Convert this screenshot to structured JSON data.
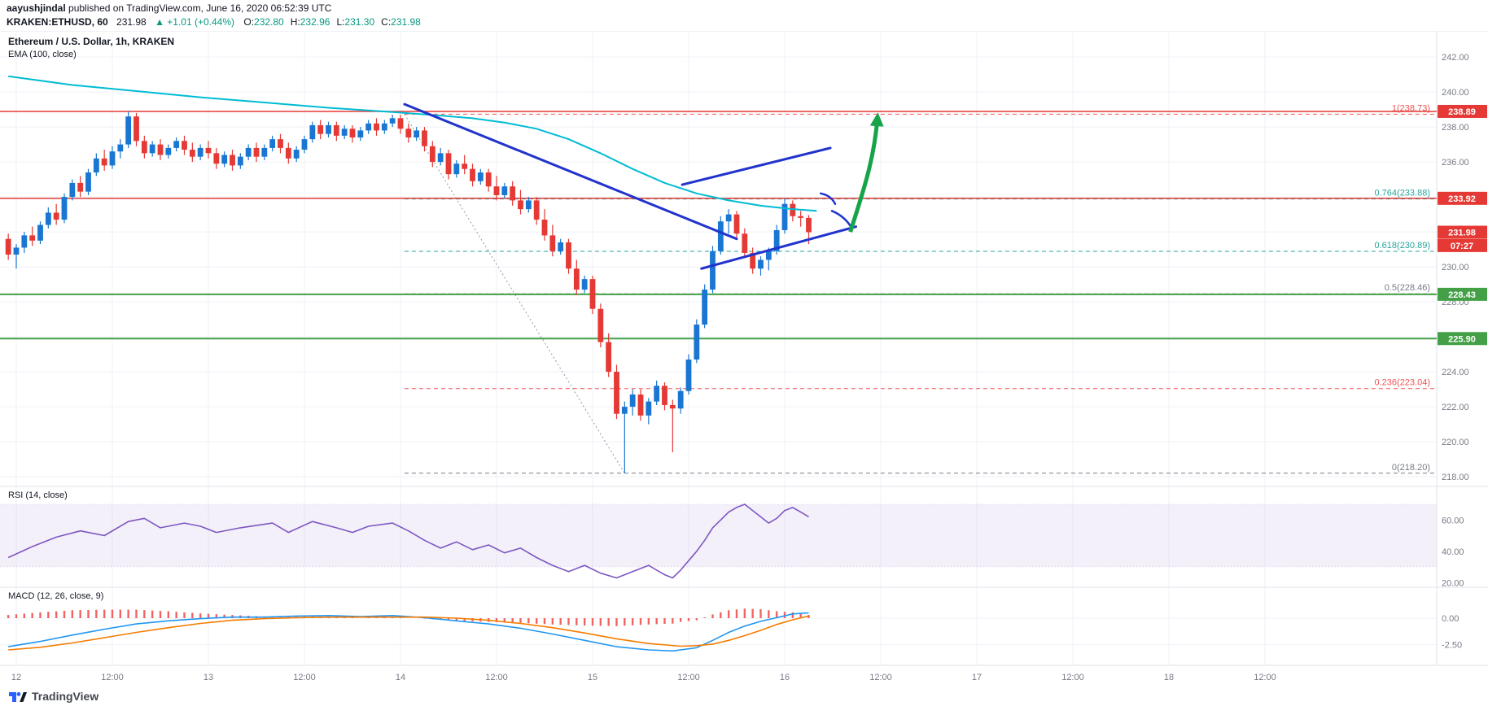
{
  "header": {
    "author": "aayushjindal",
    "published": " published on TradingView.com, June 16, 2020 06:52:39 UTC",
    "symbol": "KRAKEN:ETHUSD, 60",
    "last_price": "231.98",
    "change": "▲ +1.01 (+0.44%)",
    "ohlc": [
      {
        "label": "O:",
        "value": "232.80"
      },
      {
        "label": "H:",
        "value": "232.96"
      },
      {
        "label": "L:",
        "value": "231.30"
      },
      {
        "label": "C:",
        "value": "231.98"
      }
    ]
  },
  "pane_labels": {
    "main_title": "Ethereum / U.S. Dollar, 1h, KRAKEN",
    "ema_label": "EMA (100, close)",
    "rsi_label": "RSI (14, close)",
    "macd_label": "MACD (12, 26, close, 9)"
  },
  "footer": {
    "brand": "TradingView"
  },
  "colors": {
    "up": "#1976d2",
    "down": "#e53935",
    "ema": "#00bcd4",
    "trend": "#2133cc",
    "arrow": "#16a34a",
    "rsi": "#7e57c2",
    "macd_line": "#2196f3",
    "macd_signal": "#f57c00",
    "macd_hist": "#ef5350",
    "green_line": "#43a047",
    "red_line": "#e53935",
    "teal": "#26a69a",
    "gray": "#787b86",
    "grid": "#eef1f8",
    "border": "#e0e3eb",
    "tick_text": "#787b86"
  },
  "chart_data": {
    "type": "candlestick",
    "title": "Ethereum / U.S. Dollar, 1h, KRAKEN",
    "symbol": "ETHUSD",
    "exchange": "KRAKEN",
    "interval": "1h",
    "ylim": [
      217.4,
      243.4
    ],
    "price_axis": [
      {
        "v": 242,
        "label": "242.00"
      },
      {
        "v": 240,
        "label": "240.00"
      },
      {
        "v": 238,
        "label": "238.00"
      },
      {
        "v": 236,
        "label": "236.00"
      },
      {
        "v": 234,
        "label": "234.00"
      },
      {
        "v": 232,
        "label": "232.00"
      },
      {
        "v": 230,
        "label": "230.00"
      },
      {
        "v": 228,
        "label": "228.00"
      },
      {
        "v": 226,
        "label": "226.00"
      },
      {
        "v": 224,
        "label": "224.00"
      },
      {
        "v": 222,
        "label": "222.00"
      },
      {
        "v": 220,
        "label": "220.00"
      },
      {
        "v": 218,
        "label": "218.00"
      }
    ],
    "time_axis": [
      [
        0,
        "12"
      ],
      [
        12,
        "12:00"
      ],
      [
        24,
        "13"
      ],
      [
        36,
        "12:00"
      ],
      [
        48,
        "14"
      ],
      [
        60,
        "12:00"
      ],
      [
        72,
        "15"
      ],
      [
        84,
        "12:00"
      ],
      [
        96,
        "16"
      ],
      [
        108,
        "12:00"
      ],
      [
        120,
        "17"
      ],
      [
        132,
        "12:00"
      ],
      [
        144,
        "18"
      ],
      [
        156,
        "12:00"
      ]
    ],
    "candles": [
      [
        231.6,
        231.9,
        230.4,
        230.7
      ],
      [
        230.7,
        231.3,
        229.9,
        231.1
      ],
      [
        231.1,
        232.0,
        230.8,
        231.8
      ],
      [
        231.8,
        232.3,
        231.2,
        231.5
      ],
      [
        231.5,
        232.6,
        231.3,
        232.4
      ],
      [
        232.4,
        233.4,
        232.2,
        233.1
      ],
      [
        233.1,
        233.6,
        232.4,
        232.7
      ],
      [
        232.7,
        234.2,
        232.5,
        234.0
      ],
      [
        234.0,
        235.0,
        233.8,
        234.8
      ],
      [
        234.8,
        235.2,
        234.0,
        234.3
      ],
      [
        234.3,
        235.6,
        234.1,
        235.4
      ],
      [
        235.4,
        236.5,
        235.2,
        236.2
      ],
      [
        236.2,
        236.7,
        235.5,
        235.8
      ],
      [
        235.8,
        236.9,
        235.6,
        236.6
      ],
      [
        236.6,
        237.3,
        236.2,
        237.0
      ],
      [
        237.0,
        238.9,
        236.8,
        238.6
      ],
      [
        238.6,
        238.8,
        236.9,
        237.2
      ],
      [
        237.2,
        237.5,
        236.2,
        236.5
      ],
      [
        236.5,
        237.2,
        236.3,
        237.0
      ],
      [
        237.0,
        237.3,
        236.1,
        236.4
      ],
      [
        236.4,
        237.0,
        236.2,
        236.8
      ],
      [
        236.8,
        237.4,
        236.6,
        237.2
      ],
      [
        237.2,
        237.5,
        236.4,
        236.7
      ],
      [
        236.7,
        237.1,
        236.0,
        236.3
      ],
      [
        236.3,
        237.0,
        236.1,
        236.8
      ],
      [
        236.8,
        237.2,
        236.2,
        236.5
      ],
      [
        236.5,
        236.8,
        235.6,
        235.9
      ],
      [
        235.9,
        236.6,
        235.7,
        236.4
      ],
      [
        236.4,
        236.7,
        235.5,
        235.8
      ],
      [
        235.8,
        236.5,
        235.6,
        236.3
      ],
      [
        236.3,
        237.0,
        236.1,
        236.8
      ],
      [
        236.8,
        237.1,
        236.0,
        236.3
      ],
      [
        236.3,
        237.0,
        236.1,
        236.8
      ],
      [
        236.8,
        237.5,
        236.6,
        237.3
      ],
      [
        237.3,
        237.6,
        236.5,
        236.8
      ],
      [
        236.8,
        237.1,
        235.9,
        236.2
      ],
      [
        236.2,
        236.9,
        236.0,
        236.7
      ],
      [
        236.7,
        237.5,
        236.5,
        237.3
      ],
      [
        237.3,
        238.3,
        237.1,
        238.1
      ],
      [
        238.1,
        238.4,
        237.3,
        237.6
      ],
      [
        237.6,
        238.3,
        237.4,
        238.1
      ],
      [
        238.1,
        238.3,
        237.2,
        237.5
      ],
      [
        237.5,
        238.1,
        237.3,
        237.9
      ],
      [
        237.9,
        238.1,
        237.1,
        237.4
      ],
      [
        237.4,
        238.0,
        237.2,
        237.8
      ],
      [
        237.8,
        238.4,
        237.6,
        238.2
      ],
      [
        238.2,
        238.5,
        237.5,
        237.8
      ],
      [
        237.8,
        238.4,
        237.6,
        238.2
      ],
      [
        238.2,
        238.7,
        238.0,
        238.5
      ],
      [
        238.5,
        238.7,
        237.6,
        237.9
      ],
      [
        237.9,
        238.2,
        237.1,
        237.4
      ],
      [
        237.4,
        238.0,
        237.2,
        237.8
      ],
      [
        237.8,
        238.0,
        236.6,
        236.9
      ],
      [
        236.9,
        237.2,
        235.7,
        236.0
      ],
      [
        236.0,
        236.8,
        235.8,
        236.5
      ],
      [
        236.5,
        236.7,
        235.0,
        235.3
      ],
      [
        235.3,
        236.1,
        235.1,
        235.9
      ],
      [
        235.9,
        236.4,
        235.3,
        235.6
      ],
      [
        235.6,
        235.9,
        234.6,
        234.9
      ],
      [
        234.9,
        235.6,
        234.7,
        235.4
      ],
      [
        235.4,
        235.6,
        234.3,
        234.6
      ],
      [
        234.6,
        235.2,
        233.8,
        234.1
      ],
      [
        234.1,
        234.8,
        233.9,
        234.6
      ],
      [
        234.6,
        234.9,
        233.5,
        233.8
      ],
      [
        233.8,
        234.4,
        233.0,
        233.3
      ],
      [
        233.3,
        234.0,
        233.1,
        233.8
      ],
      [
        233.8,
        234.0,
        232.4,
        232.7
      ],
      [
        232.7,
        233.3,
        231.5,
        231.8
      ],
      [
        231.8,
        232.4,
        230.6,
        230.9
      ],
      [
        230.9,
        231.6,
        230.7,
        231.4
      ],
      [
        231.4,
        231.6,
        229.6,
        229.9
      ],
      [
        229.9,
        230.4,
        228.4,
        228.7
      ],
      [
        228.7,
        229.5,
        228.5,
        229.3
      ],
      [
        229.3,
        229.5,
        227.3,
        227.6
      ],
      [
        227.6,
        227.9,
        225.4,
        225.7
      ],
      [
        225.7,
        226.2,
        223.7,
        224.0
      ],
      [
        224.0,
        224.4,
        221.3,
        221.6
      ],
      [
        221.6,
        222.3,
        218.2,
        222.0
      ],
      [
        222.0,
        223.0,
        221.5,
        222.7
      ],
      [
        222.7,
        223.0,
        221.2,
        221.5
      ],
      [
        221.5,
        222.5,
        221.0,
        222.3
      ],
      [
        222.3,
        223.5,
        222.1,
        223.2
      ],
      [
        223.2,
        223.4,
        221.8,
        222.1
      ],
      [
        222.1,
        222.4,
        219.4,
        221.9
      ],
      [
        221.9,
        223.1,
        221.6,
        222.9
      ],
      [
        222.9,
        225.0,
        222.7,
        224.7
      ],
      [
        224.7,
        227.0,
        224.5,
        226.7
      ],
      [
        226.7,
        229.0,
        226.5,
        228.7
      ],
      [
        228.7,
        231.2,
        228.5,
        230.9
      ],
      [
        230.9,
        232.9,
        230.7,
        232.6
      ],
      [
        232.6,
        233.3,
        231.9,
        233.0
      ],
      [
        233.0,
        233.2,
        231.6,
        231.9
      ],
      [
        231.9,
        232.2,
        230.5,
        230.8
      ],
      [
        230.8,
        231.1,
        229.6,
        229.9
      ],
      [
        229.9,
        230.6,
        229.5,
        230.4
      ],
      [
        230.4,
        231.1,
        229.8,
        230.9
      ],
      [
        230.9,
        232.4,
        230.7,
        232.1
      ],
      [
        232.1,
        233.9,
        231.9,
        233.6
      ],
      [
        233.6,
        233.8,
        232.6,
        232.9
      ],
      [
        232.9,
        233.2,
        232.3,
        232.8
      ],
      [
        232.8,
        232.96,
        231.3,
        231.98
      ]
    ],
    "ema100": [
      [
        0,
        240.9
      ],
      [
        8,
        240.4
      ],
      [
        16,
        240.05
      ],
      [
        24,
        239.7
      ],
      [
        32,
        239.4
      ],
      [
        40,
        239.1
      ],
      [
        48,
        238.85
      ],
      [
        54,
        238.65
      ],
      [
        58,
        238.5
      ],
      [
        62,
        238.25
      ],
      [
        66,
        237.9
      ],
      [
        70,
        237.3
      ],
      [
        74,
        236.5
      ],
      [
        78,
        235.6
      ],
      [
        82,
        234.8
      ],
      [
        86,
        234.2
      ],
      [
        90,
        233.8
      ],
      [
        94,
        233.5
      ],
      [
        98,
        233.3
      ],
      [
        101,
        233.2
      ]
    ],
    "rsi14": [
      [
        0,
        36
      ],
      [
        3,
        43
      ],
      [
        6,
        49
      ],
      [
        9,
        53
      ],
      [
        12,
        50
      ],
      [
        15,
        59
      ],
      [
        17,
        61
      ],
      [
        19,
        55
      ],
      [
        22,
        58
      ],
      [
        24,
        56
      ],
      [
        26,
        52
      ],
      [
        29,
        55
      ],
      [
        33,
        58
      ],
      [
        35,
        52
      ],
      [
        38,
        59
      ],
      [
        41,
        55
      ],
      [
        43,
        52
      ],
      [
        45,
        56
      ],
      [
        48,
        58
      ],
      [
        50,
        53
      ],
      [
        52,
        47
      ],
      [
        54,
        42
      ],
      [
        56,
        46
      ],
      [
        58,
        41
      ],
      [
        60,
        44
      ],
      [
        62,
        39
      ],
      [
        64,
        42
      ],
      [
        66,
        36
      ],
      [
        68,
        31
      ],
      [
        70,
        27
      ],
      [
        72,
        31
      ],
      [
        74,
        26
      ],
      [
        76,
        23
      ],
      [
        78,
        27
      ],
      [
        80,
        31
      ],
      [
        81,
        28
      ],
      [
        82,
        25
      ],
      [
        83,
        23
      ],
      [
        84,
        28
      ],
      [
        85,
        34
      ],
      [
        86,
        40
      ],
      [
        87,
        47
      ],
      [
        88,
        55
      ],
      [
        89,
        60
      ],
      [
        90,
        65
      ],
      [
        91,
        68
      ],
      [
        92,
        70
      ],
      [
        93,
        66
      ],
      [
        94,
        62
      ],
      [
        95,
        58
      ],
      [
        96,
        61
      ],
      [
        97,
        66
      ],
      [
        98,
        68
      ],
      [
        99,
        65
      ],
      [
        100,
        62
      ]
    ],
    "rsi_band": [
      30,
      70
    ],
    "rsi_ticks": [
      {
        "v": 60,
        "label": "60.00"
      },
      {
        "v": 40,
        "label": "40.00"
      },
      {
        "v": 20,
        "label": "20.00"
      }
    ],
    "macd": {
      "line": [
        [
          0,
          -2.7
        ],
        [
          4,
          -2.2
        ],
        [
          8,
          -1.6
        ],
        [
          12,
          -1.05
        ],
        [
          16,
          -0.55
        ],
        [
          20,
          -0.25
        ],
        [
          24,
          -0.05
        ],
        [
          28,
          0.1
        ],
        [
          32,
          0.1
        ],
        [
          36,
          0.2
        ],
        [
          40,
          0.25
        ],
        [
          44,
          0.15
        ],
        [
          48,
          0.25
        ],
        [
          52,
          0.05
        ],
        [
          56,
          -0.25
        ],
        [
          60,
          -0.55
        ],
        [
          64,
          -0.95
        ],
        [
          68,
          -1.5
        ],
        [
          72,
          -2.1
        ],
        [
          76,
          -2.7
        ],
        [
          80,
          -3.0
        ],
        [
          83,
          -3.1
        ],
        [
          86,
          -2.8
        ],
        [
          88,
          -2.1
        ],
        [
          90,
          -1.35
        ],
        [
          92,
          -0.75
        ],
        [
          94,
          -0.3
        ],
        [
          96,
          0.05
        ],
        [
          98,
          0.4
        ],
        [
          100,
          0.5
        ]
      ],
      "signal": [
        [
          0,
          -3.0
        ],
        [
          4,
          -2.75
        ],
        [
          8,
          -2.35
        ],
        [
          12,
          -1.85
        ],
        [
          16,
          -1.35
        ],
        [
          20,
          -0.9
        ],
        [
          24,
          -0.5
        ],
        [
          28,
          -0.2
        ],
        [
          32,
          -0.05
        ],
        [
          36,
          0.05
        ],
        [
          40,
          0.1
        ],
        [
          44,
          0.1
        ],
        [
          48,
          0.1
        ],
        [
          52,
          0.1
        ],
        [
          56,
          0.0
        ],
        [
          60,
          -0.2
        ],
        [
          64,
          -0.5
        ],
        [
          68,
          -0.9
        ],
        [
          72,
          -1.4
        ],
        [
          76,
          -1.95
        ],
        [
          80,
          -2.4
        ],
        [
          84,
          -2.65
        ],
        [
          86,
          -2.6
        ],
        [
          88,
          -2.45
        ],
        [
          90,
          -2.1
        ],
        [
          92,
          -1.65
        ],
        [
          94,
          -1.15
        ],
        [
          96,
          -0.6
        ],
        [
          98,
          -0.15
        ],
        [
          100,
          0.2
        ]
      ]
    },
    "macd_ticks": [
      {
        "v": 0,
        "label": "0.00"
      },
      {
        "v": -2.5,
        "label": "-2.50"
      }
    ],
    "horizontal_lines": [
      {
        "price": 238.89,
        "color": "#e53935",
        "width": 1.5
      },
      {
        "price": 233.92,
        "color": "#e53935",
        "width": 1.5
      },
      {
        "price": 228.43,
        "color": "#43a047",
        "width": 2
      },
      {
        "price": 225.9,
        "color": "#43a047",
        "width": 2
      }
    ],
    "fib_levels": [
      {
        "label": "1(238.73)",
        "price": 238.73,
        "color": "#ef5350"
      },
      {
        "label": "0.764(233.88)",
        "price": 233.88,
        "color": "#26a69a"
      },
      {
        "label": "0.618(230.89)",
        "price": 230.89,
        "color": "#26a69a"
      },
      {
        "label": "0.5(228.46)",
        "price": 228.46,
        "color": "#787b86"
      },
      {
        "label": "0.236(223.04)",
        "price": 223.04,
        "color": "#ef5350"
      },
      {
        "label": "0(218.20)",
        "price": 218.2,
        "color": "#787b86"
      }
    ],
    "fib_start_i": 49.5,
    "fib_baseline": {
      "i1": 49.5,
      "p1": 238.73,
      "i2": 77,
      "p2": 218.2
    },
    "trend_lines": [
      {
        "i1": 49.5,
        "p1": 239.3,
        "i2": 91,
        "p2": 231.6
      },
      {
        "i1": 86.6,
        "p1": 229.9,
        "i2": 105.9,
        "p2": 232.3
      },
      {
        "i1": 84.2,
        "p1": 234.7,
        "i2": 102.7,
        "p2": 236.8
      }
    ],
    "marks": [
      {
        "i1": 101.5,
        "p1": 234.2,
        "i2": 103.3,
        "p2": 233.6
      },
      {
        "i1": 102.9,
        "p1": 233.2,
        "i2": 105.4,
        "p2": 232.2
      }
    ],
    "arrow": {
      "i1": 105.2,
      "p1": 232.0,
      "i2": 108.6,
      "p2": 238.6
    },
    "price_tags": [
      {
        "text": "238.89",
        "price": 238.89,
        "bg": "#e53935"
      },
      {
        "text": "233.92",
        "price": 233.92,
        "bg": "#e53935"
      },
      {
        "text": "231.98",
        "price": 231.98,
        "bg": "#e53935"
      },
      {
        "text": "07:27",
        "price": 231.22,
        "bg": "#e53935"
      },
      {
        "text": "228.43",
        "price": 228.43,
        "bg": "#43a047"
      },
      {
        "text": "225.90",
        "price": 225.9,
        "bg": "#43a047"
      }
    ]
  }
}
